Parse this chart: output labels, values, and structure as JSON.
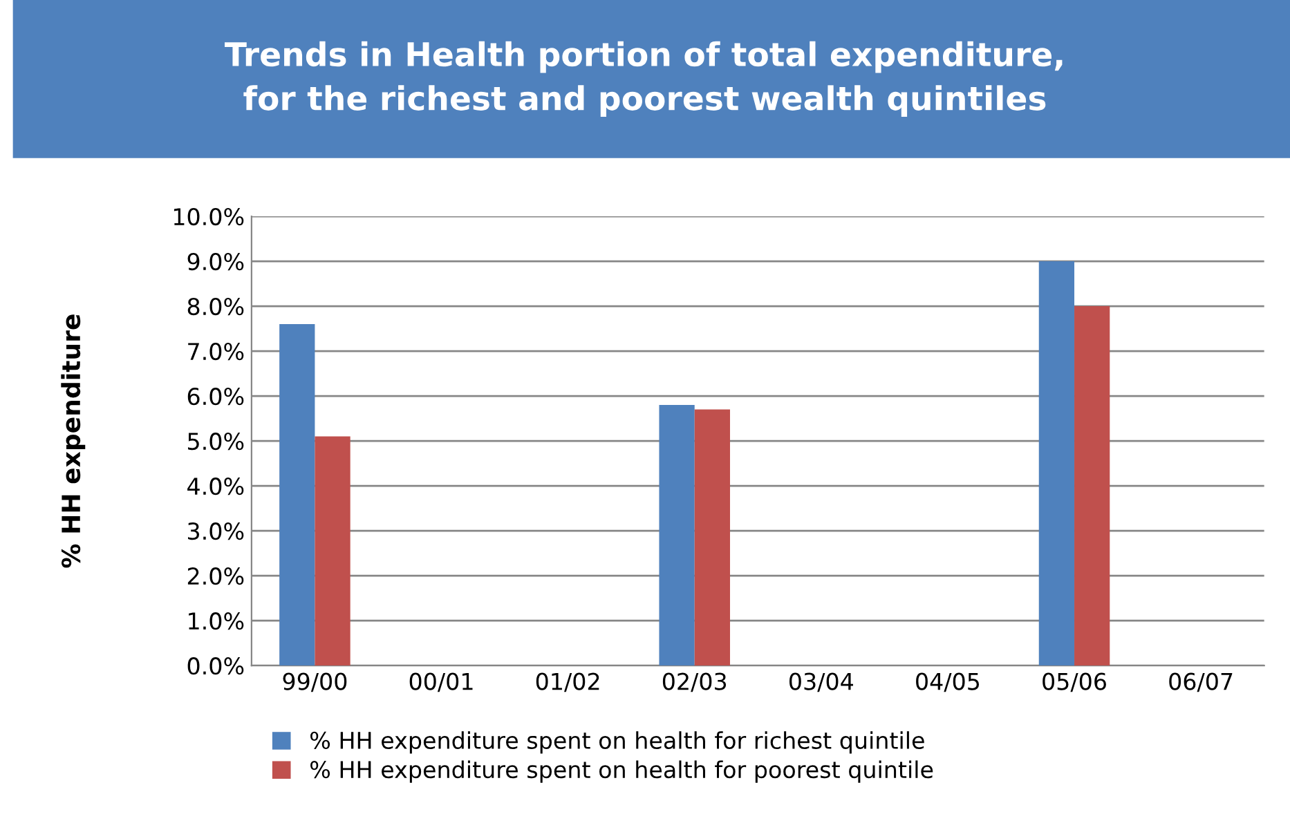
{
  "chart_data": {
    "type": "bar",
    "title": "Trends in Health portion of total expenditure,\nfor the richest and poorest wealth quintiles",
    "ylabel": "% HH expenditure",
    "categories": [
      "99/00",
      "00/01",
      "01/02",
      "02/03",
      "03/04",
      "04/05",
      "05/06",
      "06/07"
    ],
    "series": [
      {
        "name": "% HH expenditure spent on health for richest quintile",
        "color": "#4f81bd",
        "values": [
          7.6,
          null,
          null,
          5.8,
          null,
          null,
          9.0,
          null
        ]
      },
      {
        "name": "% HH expenditure spent on health for poorest quintile",
        "color": "#c0504d",
        "values": [
          5.1,
          null,
          null,
          5.7,
          null,
          null,
          8.0,
          null
        ]
      }
    ],
    "ylim": [
      0,
      10
    ],
    "yticks": [
      {
        "value": 0,
        "label": "0.0%"
      },
      {
        "value": 1,
        "label": "1.0%"
      },
      {
        "value": 2,
        "label": "2.0%"
      },
      {
        "value": 3,
        "label": "3.0%"
      },
      {
        "value": 4,
        "label": "4.0%"
      },
      {
        "value": 5,
        "label": "5.0%"
      },
      {
        "value": 6,
        "label": "6.0%"
      },
      {
        "value": 7,
        "label": "7.0%"
      },
      {
        "value": 8,
        "label": "8.0%"
      },
      {
        "value": 9,
        "label": "9.0%"
      },
      {
        "value": 10,
        "label": "10.0%"
      }
    ],
    "grid": "y",
    "legend": "bottom"
  }
}
